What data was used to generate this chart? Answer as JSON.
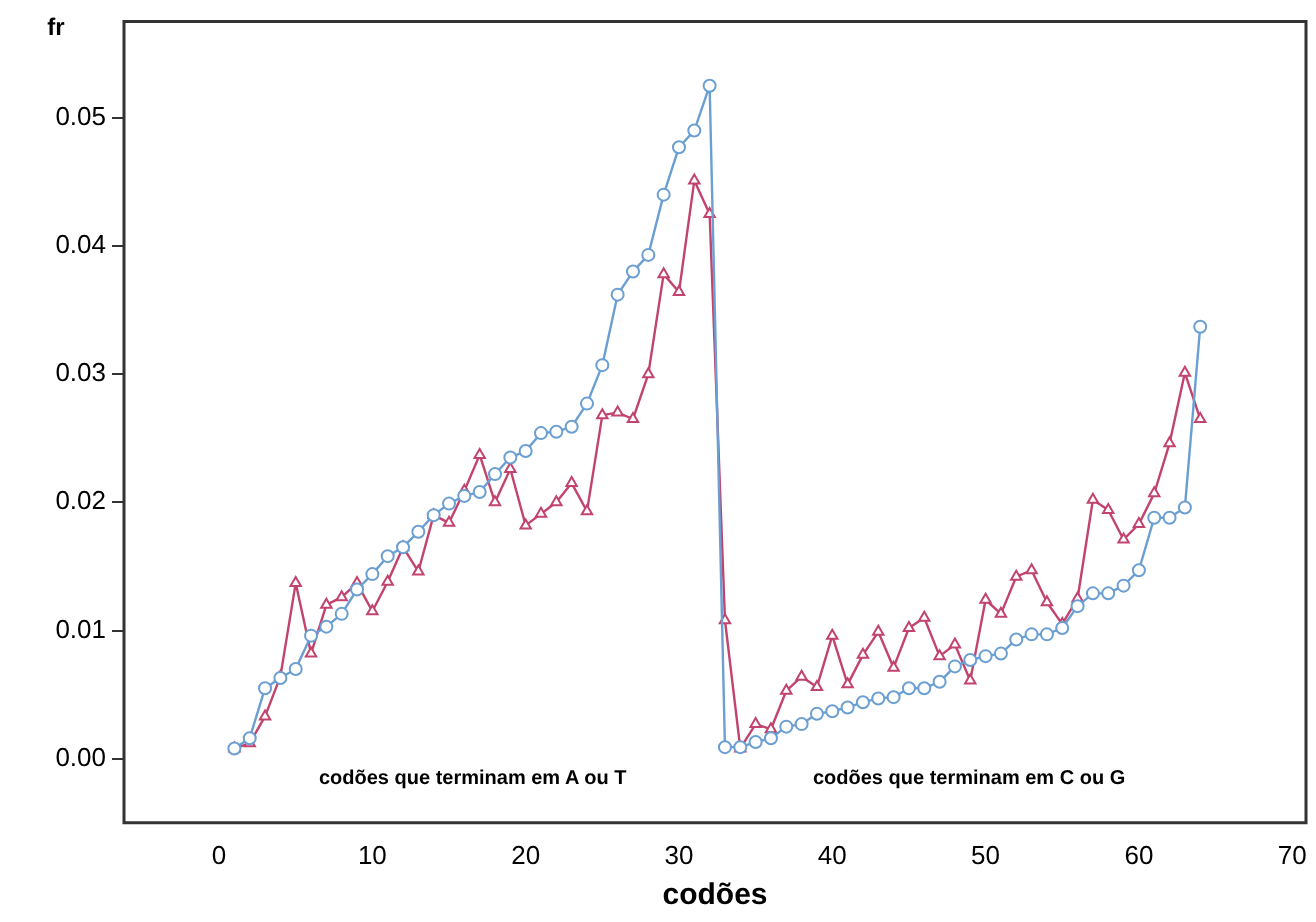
{
  "chart_data": {
    "type": "line",
    "xlabel": "codões",
    "ylabel": "fr",
    "x": [
      1,
      2,
      3,
      4,
      5,
      6,
      7,
      8,
      9,
      10,
      11,
      12,
      13,
      14,
      15,
      16,
      17,
      18,
      19,
      20,
      21,
      22,
      23,
      24,
      25,
      26,
      27,
      28,
      29,
      30,
      31,
      32,
      33,
      34,
      35,
      36,
      37,
      38,
      39,
      40,
      41,
      42,
      43,
      44,
      45,
      46,
      47,
      48,
      49,
      50,
      51,
      52,
      53,
      54,
      55,
      56,
      57,
      58,
      59,
      60,
      61,
      62,
      63,
      64
    ],
    "series": [
      {
        "color": "#6b9fd2",
        "marker": "circle",
        "values": [
          0.0008,
          0.0016,
          0.0055,
          0.0063,
          0.007,
          0.0096,
          0.0103,
          0.0113,
          0.0132,
          0.0144,
          0.0158,
          0.0165,
          0.0177,
          0.019,
          0.0199,
          0.0205,
          0.0208,
          0.0222,
          0.0235,
          0.024,
          0.0254,
          0.0255,
          0.0259,
          0.0277,
          0.0307,
          0.0362,
          0.038,
          0.0393,
          0.044,
          0.0477,
          0.049,
          0.0525,
          0.0009,
          0.0009,
          0.0013,
          0.0016,
          0.0025,
          0.0027,
          0.0035,
          0.0037,
          0.004,
          0.0044,
          0.0047,
          0.0048,
          0.0055,
          0.0055,
          0.006,
          0.0072,
          0.0077,
          0.008,
          0.0082,
          0.0093,
          0.0097,
          0.0097,
          0.0102,
          0.0119,
          0.0129,
          0.0129,
          0.0135,
          0.0147,
          0.0188,
          0.0188,
          0.0196,
          0.0337
        ]
      },
      {
        "color": "#c2436e",
        "marker": "triangle",
        "values": [
          0.0008,
          0.0012,
          0.0033,
          0.0064,
          0.0137,
          0.0082,
          0.012,
          0.0126,
          0.0137,
          0.0115,
          0.0138,
          0.0165,
          0.0146,
          0.019,
          0.0184,
          0.0209,
          0.0237,
          0.02,
          0.0226,
          0.0182,
          0.0191,
          0.02,
          0.0215,
          0.0193,
          0.0268,
          0.027,
          0.0265,
          0.03,
          0.0378,
          0.0364,
          0.0451,
          0.0425,
          0.0108,
          0.0008,
          0.0027,
          0.0023,
          0.0053,
          0.0064,
          0.0056,
          0.0096,
          0.0058,
          0.0081,
          0.0099,
          0.0071,
          0.0102,
          0.011,
          0.008,
          0.0089,
          0.0061,
          0.0124,
          0.0113,
          0.0142,
          0.0147,
          0.0122,
          0.0105,
          0.0125,
          0.0202,
          0.0194,
          0.0171,
          0.0183,
          0.0207,
          0.0246,
          0.0301,
          0.0265
        ]
      }
    ],
    "xlim": [
      -6.2,
      70.9
    ],
    "xticks": [
      0,
      10,
      20,
      30,
      40,
      50,
      60,
      70
    ],
    "ylim": [
      -0.005,
      0.0575
    ],
    "yticks": [
      {
        "value": 0,
        "label": "0.00"
      },
      {
        "value": 0.01,
        "label": "0.01"
      },
      {
        "value": 0.02,
        "label": "0.02"
      },
      {
        "value": 0.03,
        "label": "0.03"
      },
      {
        "value": 0.04,
        "label": "0.04"
      },
      {
        "value": 0.05,
        "label": "0.05"
      }
    ],
    "annotations": [
      "codões que terminam em A ou T",
      "codões que terminam em C ou G"
    ],
    "grid": false,
    "legend": false
  }
}
